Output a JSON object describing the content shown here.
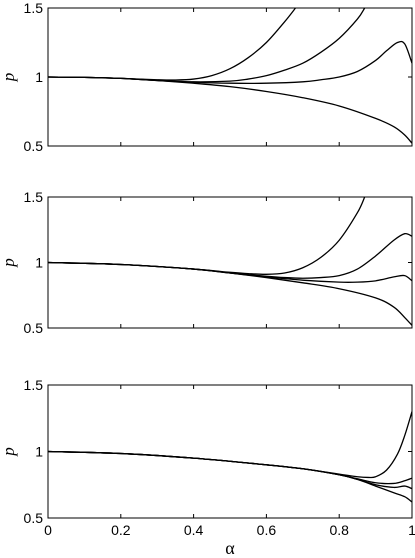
{
  "chart_data": [
    {
      "type": "line",
      "xlabel": "",
      "ylabel": "p",
      "xlim": [
        0,
        1
      ],
      "ylim": [
        0.5,
        1.5
      ],
      "xticks": [
        "0",
        "0.2",
        "0.4",
        "0.6",
        "0.8",
        "1"
      ],
      "show_xtick_labels": false,
      "yticks": [
        "0.5",
        "1",
        "1.5"
      ],
      "series": [
        {
          "x": [
            0,
            0.1,
            0.2,
            0.3,
            0.35,
            0.4,
            0.45,
            0.5,
            0.55,
            0.6,
            0.65,
            0.68
          ],
          "y": [
            1.0,
            0.997,
            0.99,
            0.98,
            0.978,
            0.985,
            1.01,
            1.06,
            1.14,
            1.25,
            1.4,
            1.5
          ]
        },
        {
          "x": [
            0,
            0.1,
            0.2,
            0.3,
            0.4,
            0.5,
            0.55,
            0.6,
            0.65,
            0.7,
            0.75,
            0.8,
            0.85,
            0.87
          ],
          "y": [
            1.0,
            0.997,
            0.99,
            0.975,
            0.965,
            0.97,
            0.985,
            1.01,
            1.05,
            1.1,
            1.18,
            1.28,
            1.42,
            1.5
          ]
        },
        {
          "x": [
            0,
            0.1,
            0.2,
            0.3,
            0.4,
            0.5,
            0.6,
            0.7,
            0.75,
            0.8,
            0.85,
            0.9,
            0.93,
            0.96,
            0.98,
            1.0
          ],
          "y": [
            1.0,
            0.997,
            0.99,
            0.975,
            0.962,
            0.955,
            0.955,
            0.965,
            0.98,
            1.0,
            1.04,
            1.12,
            1.19,
            1.25,
            1.24,
            1.1
          ]
        },
        {
          "x": [
            0,
            0.1,
            0.2,
            0.3,
            0.4,
            0.5,
            0.6,
            0.7,
            0.8,
            0.9,
            0.95,
            0.98,
            1.0
          ],
          "y": [
            1.0,
            0.997,
            0.99,
            0.975,
            0.955,
            0.93,
            0.895,
            0.85,
            0.79,
            0.7,
            0.64,
            0.58,
            0.52
          ]
        }
      ]
    },
    {
      "type": "line",
      "xlabel": "",
      "ylabel": "p",
      "xlim": [
        0,
        1
      ],
      "ylim": [
        0.5,
        1.5
      ],
      "xticks": [
        "0",
        "0.2",
        "0.4",
        "0.6",
        "0.8",
        "1"
      ],
      "show_xtick_labels": false,
      "yticks": [
        "0.5",
        "1",
        "1.5"
      ],
      "series": [
        {
          "x": [
            0,
            0.2,
            0.4,
            0.5,
            0.55,
            0.6,
            0.65,
            0.7,
            0.75,
            0.8,
            0.85,
            0.87
          ],
          "y": [
            1.0,
            0.985,
            0.95,
            0.925,
            0.915,
            0.91,
            0.92,
            0.96,
            1.04,
            1.17,
            1.38,
            1.5
          ]
        },
        {
          "x": [
            0,
            0.2,
            0.4,
            0.5,
            0.6,
            0.65,
            0.7,
            0.75,
            0.8,
            0.85,
            0.9,
            0.95,
            0.98,
            1.0
          ],
          "y": [
            1.0,
            0.985,
            0.95,
            0.92,
            0.895,
            0.885,
            0.88,
            0.885,
            0.9,
            0.95,
            1.05,
            1.17,
            1.22,
            1.2
          ]
        },
        {
          "x": [
            0,
            0.2,
            0.4,
            0.5,
            0.6,
            0.7,
            0.8,
            0.85,
            0.9,
            0.95,
            0.98,
            1.0
          ],
          "y": [
            1.0,
            0.985,
            0.95,
            0.92,
            0.89,
            0.865,
            0.85,
            0.85,
            0.86,
            0.89,
            0.9,
            0.86
          ]
        },
        {
          "x": [
            0,
            0.2,
            0.4,
            0.5,
            0.6,
            0.7,
            0.8,
            0.9,
            0.95,
            0.98,
            1.0
          ],
          "y": [
            1.0,
            0.985,
            0.95,
            0.92,
            0.885,
            0.845,
            0.8,
            0.73,
            0.66,
            0.58,
            0.52
          ]
        }
      ]
    },
    {
      "type": "line",
      "xlabel": "α",
      "ylabel": "p",
      "xlim": [
        0,
        1
      ],
      "ylim": [
        0.5,
        1.5
      ],
      "xticks": [
        "0",
        "0.2",
        "0.4",
        "0.6",
        "0.8",
        "1"
      ],
      "show_xtick_labels": true,
      "yticks": [
        "0.5",
        "1",
        "1.5"
      ],
      "series": [
        {
          "x": [
            0,
            0.2,
            0.4,
            0.6,
            0.7,
            0.8,
            0.85,
            0.88,
            0.9,
            0.93,
            0.96,
            0.98,
            1.0
          ],
          "y": [
            1.0,
            0.985,
            0.95,
            0.9,
            0.87,
            0.83,
            0.81,
            0.805,
            0.81,
            0.86,
            0.98,
            1.12,
            1.3
          ]
        },
        {
          "x": [
            0,
            0.2,
            0.4,
            0.6,
            0.7,
            0.8,
            0.85,
            0.9,
            0.95,
            0.98,
            1.0
          ],
          "y": [
            1.0,
            0.985,
            0.95,
            0.9,
            0.87,
            0.825,
            0.795,
            0.765,
            0.76,
            0.78,
            0.8
          ]
        },
        {
          "x": [
            0,
            0.2,
            0.4,
            0.6,
            0.7,
            0.8,
            0.85,
            0.9,
            0.95,
            0.98,
            1.0
          ],
          "y": [
            1.0,
            0.985,
            0.95,
            0.9,
            0.87,
            0.825,
            0.79,
            0.75,
            0.73,
            0.74,
            0.72
          ]
        },
        {
          "x": [
            0,
            0.2,
            0.4,
            0.6,
            0.7,
            0.8,
            0.85,
            0.9,
            0.95,
            0.98,
            1.0
          ],
          "y": [
            1.0,
            0.985,
            0.95,
            0.9,
            0.87,
            0.825,
            0.79,
            0.74,
            0.69,
            0.66,
            0.62
          ]
        }
      ]
    }
  ]
}
